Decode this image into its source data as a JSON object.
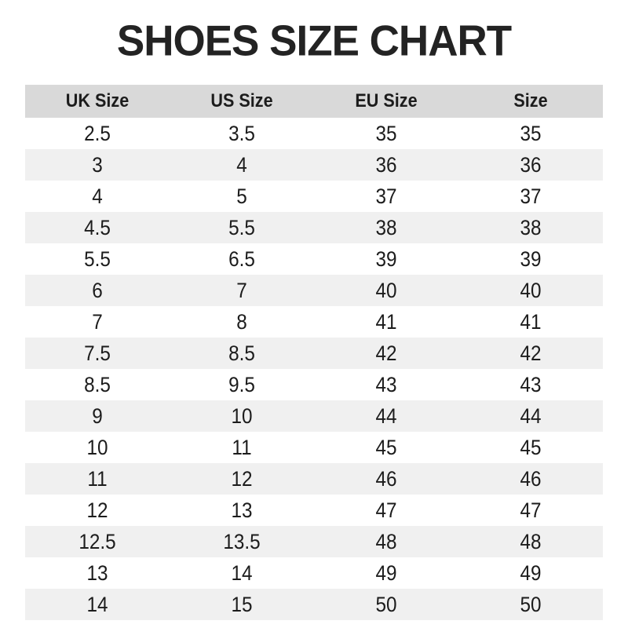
{
  "page_title": "SHOES SIZE CHART",
  "colors": {
    "header_bg": "#d9d9d9",
    "stripe_bg": "#f0f0f0",
    "text": "#1c1c1c",
    "title": "#232323"
  },
  "chart_data": {
    "type": "table",
    "title": "SHOES SIZE CHART",
    "columns": [
      "UK Size",
      "US Size",
      "EU Size",
      "Size"
    ],
    "rows": [
      [
        "2.5",
        "3.5",
        "35",
        "35"
      ],
      [
        "3",
        "4",
        "36",
        "36"
      ],
      [
        "4",
        "5",
        "37",
        "37"
      ],
      [
        "4.5",
        "5.5",
        "38",
        "38"
      ],
      [
        "5.5",
        "6.5",
        "39",
        "39"
      ],
      [
        "6",
        "7",
        "40",
        "40"
      ],
      [
        "7",
        "8",
        "41",
        "41"
      ],
      [
        "7.5",
        "8.5",
        "42",
        "42"
      ],
      [
        "8.5",
        "9.5",
        "43",
        "43"
      ],
      [
        "9",
        "10",
        "44",
        "44"
      ],
      [
        "10",
        "11",
        "45",
        "45"
      ],
      [
        "11",
        "12",
        "46",
        "46"
      ],
      [
        "12",
        "13",
        "47",
        "47"
      ],
      [
        "12.5",
        "13.5",
        "48",
        "48"
      ],
      [
        "13",
        "14",
        "49",
        "49"
      ],
      [
        "14",
        "15",
        "50",
        "50"
      ]
    ],
    "layout": {
      "striped": true,
      "first_data_row_background": "white",
      "header_background": "gray",
      "cell_alignment": "center"
    }
  }
}
